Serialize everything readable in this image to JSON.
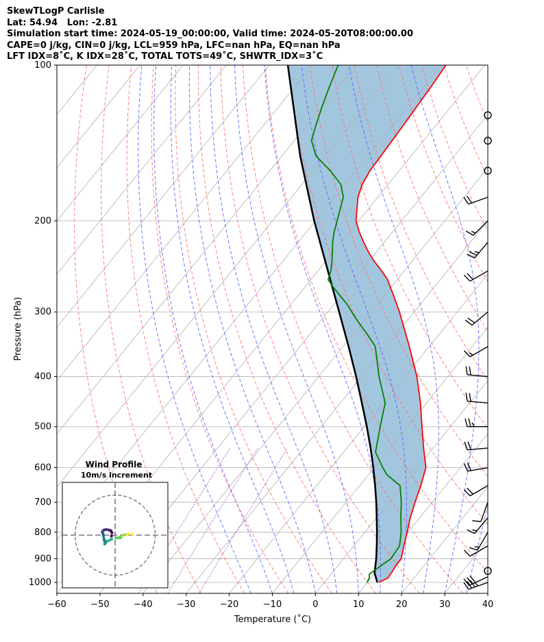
{
  "header": {
    "line1": "SkewTLogP Carlisle",
    "line2": "Lat: 54.94   Lon: -2.81",
    "line3": "Simulation start time: 2024-05-19_00:00:00, Valid time: 2024-05-20T08:00:00.00",
    "line4": "CAPE=0 j/kg, CIN=0 j/kg, LCL=959 hPa, LFC=nan hPa, EQ=nan hPa",
    "line5": "LFT IDX=8˚C, K IDX=28˚C, TOTAL TOTS=49˚C, SHWTR_IDX=3˚C"
  },
  "chart_data": [
    {
      "type": "line",
      "subtype": "skew-t log-p",
      "xlabel": "Temperature (˚C)",
      "ylabel": "Pressure (hPa)",
      "xlim": [
        -60,
        40
      ],
      "ylim": [
        1050,
        100
      ],
      "y_scale": "log",
      "x_ticks": [
        "−60",
        "−50",
        "−40",
        "−30",
        "−20",
        "−10",
        "0",
        "10",
        "20",
        "30",
        "40"
      ],
      "y_ticks": [
        "100",
        "200",
        "300",
        "400",
        "500",
        "600",
        "700",
        "800",
        "900",
        "1000"
      ],
      "grid": true,
      "colors": {
        "temperature": "#ff0000",
        "dewpoint": "#008000",
        "parcel": "#000000",
        "cape_fill": "#a3c6df",
        "dry_adiabat": "#ff6b6b",
        "moist_adiabat": "#5a5aff",
        "mixing_ratio": "#9933cc"
      },
      "series": [
        {
          "key": "temperature",
          "points": [
            [
              1000,
              12.7
            ],
            [
              980,
              13.9
            ],
            [
              950,
              13.7
            ],
            [
              925,
              13.4
            ],
            [
              900,
              13.4
            ],
            [
              850,
              11.6
            ],
            [
              800,
              9.8
            ],
            [
              750,
              7.8
            ],
            [
              700,
              6.0
            ],
            [
              650,
              4.2
            ],
            [
              600,
              2.0
            ],
            [
              550,
              -2.2
            ],
            [
              500,
              -6.6
            ],
            [
              450,
              -11.4
            ],
            [
              400,
              -17.2
            ],
            [
              350,
              -24.6
            ],
            [
              300,
              -33.4
            ],
            [
              280,
              -37.6
            ],
            [
              260,
              -42.2
            ],
            [
              250,
              -45.2
            ],
            [
              240,
              -48.6
            ],
            [
              230,
              -51.8
            ],
            [
              220,
              -54.8
            ],
            [
              210,
              -57.8
            ],
            [
              200,
              -60.6
            ],
            [
              180,
              -64.6
            ],
            [
              170,
              -66.0
            ],
            [
              160,
              -66.8
            ],
            [
              150,
              -67.0
            ],
            [
              140,
              -67.3
            ],
            [
              130,
              -67.6
            ],
            [
              120,
              -68.0
            ],
            [
              110,
              -68.4
            ],
            [
              100,
              -69.0
            ]
          ]
        },
        {
          "key": "dewpoint",
          "points": [
            [
              1000,
              9.9
            ],
            [
              980,
              9.6
            ],
            [
              965,
              8.9
            ],
            [
              950,
              9.3
            ],
            [
              900,
              11.0
            ],
            [
              850,
              10.6
            ],
            [
              800,
              8.4
            ],
            [
              750,
              5.6
            ],
            [
              700,
              2.8
            ],
            [
              650,
              -0.6
            ],
            [
              620,
              -5.6
            ],
            [
              600,
              -8.0
            ],
            [
              560,
              -12.6
            ],
            [
              500,
              -16.3
            ],
            [
              450,
              -19.6
            ],
            [
              400,
              -26.0
            ],
            [
              350,
              -32.5
            ],
            [
              330,
              -37.0
            ],
            [
              310,
              -42.0
            ],
            [
              290,
              -47.0
            ],
            [
              270,
              -53.0
            ],
            [
              260,
              -56.0
            ],
            [
              250,
              -57.0
            ],
            [
              240,
              -58.5
            ],
            [
              230,
              -60.2
            ],
            [
              220,
              -62.0
            ],
            [
              210,
              -63.6
            ],
            [
              200,
              -65.0
            ],
            [
              180,
              -68.0
            ],
            [
              170,
              -71.0
            ],
            [
              160,
              -76.0
            ],
            [
              150,
              -82.0
            ],
            [
              140,
              -86.0
            ],
            [
              130,
              -88.0
            ],
            [
              120,
              -90.0
            ],
            [
              110,
              -92.0
            ],
            [
              100,
              -94.0
            ]
          ]
        },
        {
          "key": "parcel",
          "points": [
            [
              1000,
              12.3
            ],
            [
              959,
              9.9
            ],
            [
              900,
              7.6
            ],
            [
              850,
              5.3
            ],
            [
              800,
              2.8
            ],
            [
              750,
              0.0
            ],
            [
              700,
              -3.0
            ],
            [
              650,
              -6.4
            ],
            [
              600,
              -10.2
            ],
            [
              550,
              -14.5
            ],
            [
              500,
              -19.4
            ],
            [
              450,
              -25.0
            ],
            [
              400,
              -31.3
            ],
            [
              350,
              -38.7
            ],
            [
              300,
              -47.4
            ],
            [
              250,
              -57.7
            ],
            [
              200,
              -70.3
            ],
            [
              150,
              -85.7
            ],
            [
              100,
              -105.7
            ]
          ]
        }
      ],
      "wind_barbs": [
        {
          "p": 1000,
          "spd": 35,
          "dir": 250
        },
        {
          "p": 975,
          "spd": 30,
          "dir": 245
        },
        {
          "p": 950,
          "spd": 0,
          "dir": 0
        },
        {
          "p": 850,
          "spd": 10,
          "dir": 240
        },
        {
          "p": 800,
          "spd": 15,
          "dir": 210
        },
        {
          "p": 750,
          "spd": 15,
          "dir": 220
        },
        {
          "p": 700,
          "spd": 10,
          "dir": 200
        },
        {
          "p": 650,
          "spd": 20,
          "dir": 240
        },
        {
          "p": 600,
          "spd": 20,
          "dir": 260
        },
        {
          "p": 550,
          "spd": 20,
          "dir": 265
        },
        {
          "p": 500,
          "spd": 25,
          "dir": 270
        },
        {
          "p": 450,
          "spd": 20,
          "dir": 275
        },
        {
          "p": 400,
          "spd": 20,
          "dir": 275
        },
        {
          "p": 350,
          "spd": 15,
          "dir": 240
        },
        {
          "p": 300,
          "spd": 20,
          "dir": 230
        },
        {
          "p": 250,
          "spd": 20,
          "dir": 240
        },
        {
          "p": 220,
          "spd": 25,
          "dir": 220
        },
        {
          "p": 200,
          "spd": 15,
          "dir": 225
        },
        {
          "p": 180,
          "spd": 20,
          "dir": 250
        },
        {
          "p": 160,
          "spd": 0,
          "dir": 0
        },
        {
          "p": 140,
          "spd": 0,
          "dir": 0
        },
        {
          "p": 125,
          "spd": 0,
          "dir": 0
        }
      ]
    },
    {
      "type": "scatter",
      "subtype": "hodograph",
      "title": "Wind Profile",
      "subtitle": "10m/s increment",
      "xlim": [
        -25,
        25
      ],
      "ylim": [
        -25,
        25
      ],
      "rings": [
        10,
        20
      ],
      "colormap": "viridis",
      "points": [
        [
          8.5,
          0.4
        ],
        [
          6.5,
          0.6
        ],
        [
          5.0,
          0.2
        ],
        [
          4.2,
          0.0
        ],
        [
          3.0,
          -1.0
        ],
        [
          2.5,
          -1.4
        ],
        [
          1.8,
          -1.2
        ],
        [
          0.5,
          -1.5
        ],
        [
          -1.8,
          -2.0
        ],
        [
          -2.8,
          -2.6
        ],
        [
          -4.0,
          -3.0
        ],
        [
          -4.8,
          -3.8
        ],
        [
          -5.2,
          -4.4
        ],
        [
          -5.0,
          -3.8
        ],
        [
          -5.4,
          -2.6
        ],
        [
          -5.6,
          -1.6
        ],
        [
          -5.8,
          -0.4
        ],
        [
          -6.0,
          0.6
        ],
        [
          -6.4,
          1.5
        ],
        [
          -6.0,
          2.2
        ],
        [
          -5.4,
          2.6
        ],
        [
          -4.4,
          2.8
        ],
        [
          -3.2,
          2.6
        ],
        [
          -2.2,
          2.2
        ],
        [
          -1.6,
          1.2
        ],
        [
          -1.8,
          -0.4
        ]
      ]
    }
  ]
}
